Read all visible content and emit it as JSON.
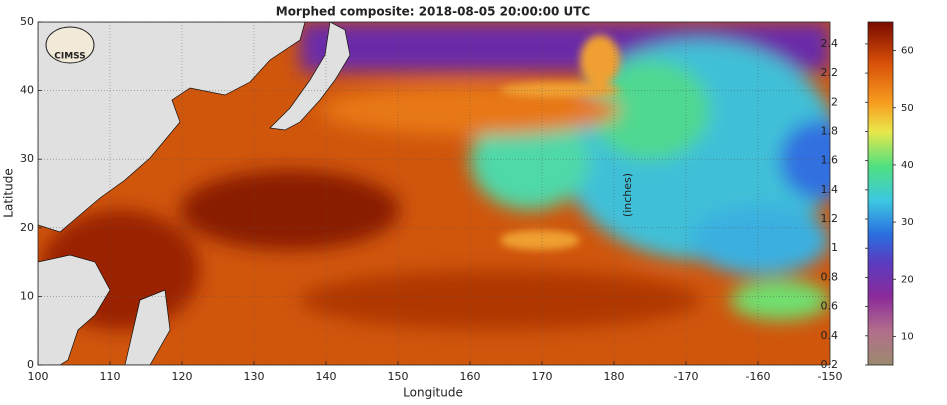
{
  "map": {
    "title": "Morphed composite: 2018-08-05 20:00:00 UTC",
    "xlabel": "Longitude",
    "ylabel": "Latitude",
    "logo": "CIMSS",
    "xlim": [
      100,
      -150
    ],
    "xticks": [
      100,
      110,
      120,
      130,
      140,
      150,
      160,
      170,
      180,
      -170,
      -160,
      -150
    ],
    "ylim": [
      0,
      50
    ],
    "yticks": [
      0,
      10,
      20,
      30,
      40,
      50
    ],
    "grid": true,
    "colorbar": {
      "label": "(inches)",
      "lim": [
        0.2,
        2.55
      ],
      "ticks": [
        0.2,
        0.4,
        0.6,
        0.8,
        1,
        1.2,
        1.4,
        1.6,
        1.8,
        2,
        2.2,
        2.4
      ],
      "mm_lim": [
        5,
        65
      ],
      "mm_ticks": [
        10,
        20,
        30,
        40,
        50,
        60
      ]
    }
  }
}
